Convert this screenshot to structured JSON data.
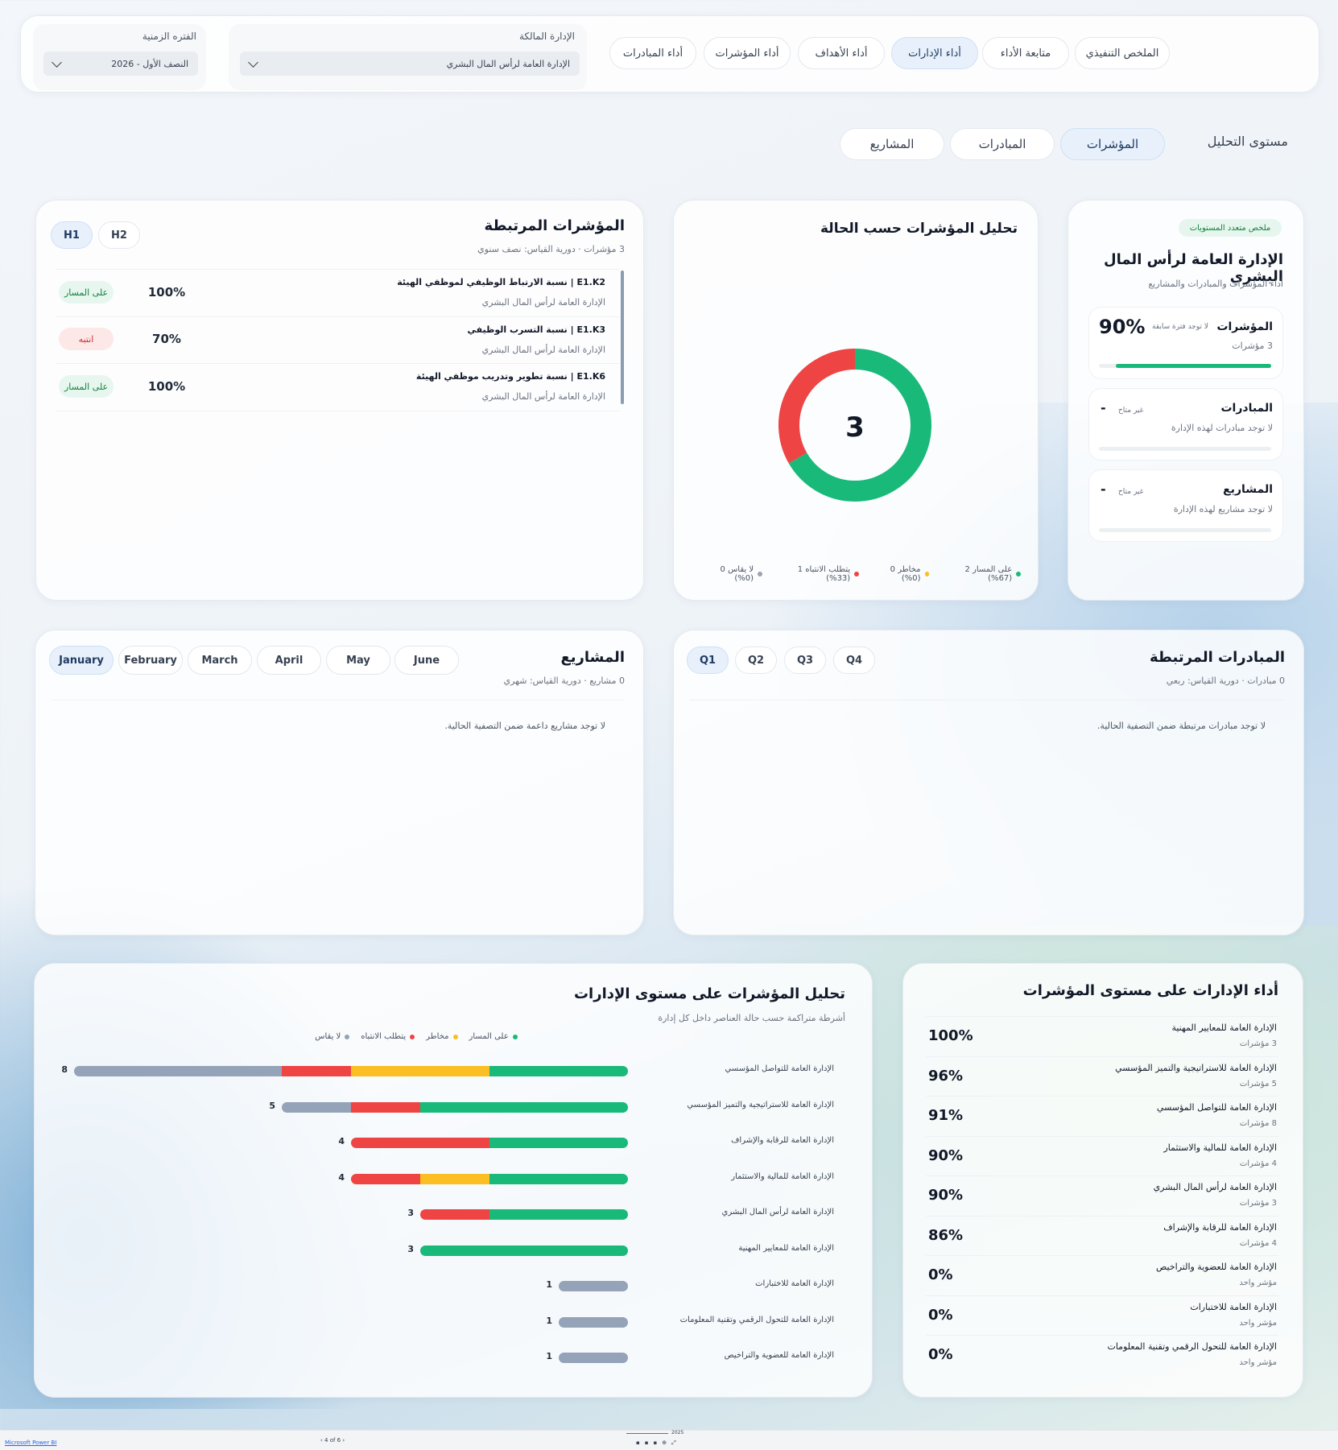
{
  "filters": {
    "period": {
      "label": "الفتره الزمنية",
      "value": "النصف الأول - 2026"
    },
    "department": {
      "label": "الإدارة المالكة",
      "value": "الإدارة العامة لرأس المال البشري"
    }
  },
  "nav_tabs": [
    "الملخص التنفيذي",
    "متابعة الأداء",
    "أداء الإدارات",
    "أداء الأهداف",
    "أداء المؤشرات",
    "أداء المبادرات"
  ],
  "nav_active": "أداء الإدارات",
  "analysis": {
    "label": "مستوى التحليل",
    "tabs": [
      "المؤشرات",
      "المبادرات",
      "المشاريع"
    ],
    "active": "المؤشرات"
  },
  "summary": {
    "tag": "ملخص متعدد المستويات",
    "title": "الإدارة العامة لرأس المال البشري",
    "subtitle": "أداء المؤشرات والمبادرات والمشاريع",
    "kpis": {
      "title": "المؤشرات",
      "count": "3 مؤشرات",
      "note": "لا توجد فترة سابقة",
      "value": "90%",
      "progress": 0.9
    },
    "initiatives": {
      "title": "المبادرات",
      "desc": "لا توجد مبادرات لهذه الإدارة",
      "note": "غير متاح",
      "value": "-"
    },
    "projects": {
      "title": "المشاريع",
      "desc": "لا توجد مشاريع لهذه الإدارة",
      "note": "غير متاح",
      "value": "-"
    }
  },
  "status_analysis": {
    "title": "تحليل المؤشرات حسب الحالة",
    "center": "3",
    "legend": [
      {
        "label": "على المسار 2 (67%)",
        "color": "#19b97a"
      },
      {
        "label": "مخاطر 0 (0%)",
        "color": "#fbbf24"
      },
      {
        "label": "يتطلب الانتباه 1 (33%)",
        "color": "#ef4444"
      },
      {
        "label": "لا يقاس 0 (0%)",
        "color": "#9ca3af"
      }
    ]
  },
  "chart_data": [
    {
      "type": "pie",
      "title": "تحليل المؤشرات حسب الحالة",
      "categories": [
        "على المسار",
        "مخاطر",
        "يتطلب الانتباه",
        "لا يقاس"
      ],
      "values": [
        2,
        0,
        1,
        0
      ],
      "colors": [
        "#19b97a",
        "#fbbf24",
        "#ef4444",
        "#9ca3af"
      ]
    },
    {
      "type": "bar",
      "title": "تحليل المؤشرات على مستوى الإدارات",
      "subtitle": "أشرطة متراكمة حسب حالة العناصر داخل كل إدارة",
      "legend": [
        "على المسار",
        "مخاطر",
        "يتطلب الانتباه",
        "لا يقاس"
      ],
      "colors": [
        "#19b97a",
        "#fbbf24",
        "#ef4444",
        "#94a3b8"
      ],
      "categories": [
        "الإدارة العامة للتواصل المؤسسي",
        "الإدارة العامة للاستراتيجية والتميز المؤسسي",
        "الإدارة العامة للرقابة والإشراف",
        "الإدارة العامة للمالية والاستثمار",
        "الإدارة العامة لرأس المال البشري",
        "الإدارة العامة للمعايير المهنية",
        "الإدارة العامة للاختبارات",
        "الإدارة العامة للتحول الرقمي وتقنية المعلومات",
        "الإدارة العامة للعضوية والتراخيص"
      ],
      "series": [
        {
          "name": "على المسار",
          "values": [
            2,
            3,
            2,
            2,
            2,
            3,
            0,
            0,
            0
          ]
        },
        {
          "name": "مخاطر",
          "values": [
            2,
            0,
            0,
            1,
            0,
            0,
            0,
            0,
            0
          ]
        },
        {
          "name": "يتطلب الانتباه",
          "values": [
            1,
            1,
            2,
            1,
            1,
            0,
            0,
            0,
            0
          ]
        },
        {
          "name": "لا يقاس",
          "values": [
            3,
            1,
            0,
            0,
            0,
            0,
            1,
            1,
            1
          ]
        }
      ],
      "totals": [
        8,
        5,
        4,
        4,
        3,
        3,
        1,
        1,
        1
      ]
    }
  ],
  "linked_kpis": {
    "title": "المؤشرات المرتبطة",
    "subtitle": "3 مؤشرات · دورية القياس: نصف سنوي",
    "toggles": [
      "H1",
      "H2"
    ],
    "active_toggle": "H1",
    "rows": [
      {
        "name": "E1.K2 | نسبة الارتباط الوظيفي لموظفي الهيئة",
        "dept": "الإدارة العامة لرأس المال البشري",
        "value": "100%",
        "status": "على المسار",
        "tone": "green"
      },
      {
        "name": "E1.K3 | نسبة التسرب الوظيفي",
        "dept": "الإدارة العامة لرأس المال البشري",
        "value": "70%",
        "status": "انتبه",
        "tone": "red"
      },
      {
        "name": "E1.K6 | نسبة تطوير وتدريب موظفي الهيئة",
        "dept": "الإدارة العامة لرأس المال البشري",
        "value": "100%",
        "status": "على المسار",
        "tone": "green"
      }
    ]
  },
  "linked_initiatives": {
    "title": "المبادرات المرتبطة",
    "subtitle": "0 مبادرات · دورية القياس: ربعي",
    "quarters": [
      "Q1",
      "Q2",
      "Q3",
      "Q4"
    ],
    "active": "Q1",
    "empty": "لا توجد مبادرات مرتبطة ضمن التصفية الحالية."
  },
  "projects": {
    "title": "المشاريع",
    "subtitle": "0 مشاريع · دورية القياس: شهري",
    "months": [
      "January",
      "February",
      "March",
      "April",
      "May",
      "June"
    ],
    "active": "January",
    "empty": "لا توجد مشاريع داعمة ضمن التصفية الحالية."
  },
  "dept_performance": {
    "title": "أداء الإدارات على مستوى المؤشرات",
    "rows": [
      {
        "name": "الإدارة العامة للمعايير المهنية",
        "count": "3 مؤشرات",
        "value": "100%"
      },
      {
        "name": "الإدارة العامة للاستراتيجية والتميز المؤسسي",
        "count": "5 مؤشرات",
        "value": "96%"
      },
      {
        "name": "الإدارة العامة للتواصل المؤسسي",
        "count": "8 مؤشرات",
        "value": "91%"
      },
      {
        "name": "الإدارة العامة للمالية والاستثمار",
        "count": "4 مؤشرات",
        "value": "90%"
      },
      {
        "name": "الإدارة العامة لرأس المال البشري",
        "count": "3 مؤشرات",
        "value": "90%"
      },
      {
        "name": "الإدارة العامة للرقابة والإشراف",
        "count": "4 مؤشرات",
        "value": "86%"
      },
      {
        "name": "الإدارة العامة للعضوية والتراخيص",
        "count": "مؤشر واحد",
        "value": "0%"
      },
      {
        "name": "الإدارة العامة للاختبارات",
        "count": "مؤشر واحد",
        "value": "0%"
      },
      {
        "name": "الإدارة العامة للتحول الرقمي وتقنية المعلومات",
        "count": "مؤشر واحد",
        "value": "0%"
      }
    ]
  },
  "footer": {
    "app": "Microsoft Power BI",
    "page": "4 of 6",
    "zoom": "2025"
  }
}
